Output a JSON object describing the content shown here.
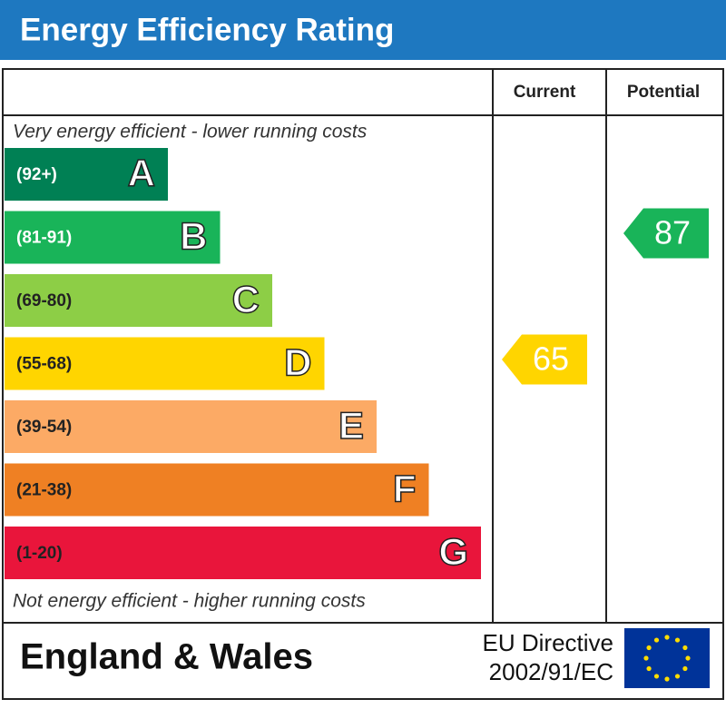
{
  "header": {
    "title": "Energy Efficiency Rating"
  },
  "columns": {
    "current": "Current",
    "potential": "Potential"
  },
  "notes": {
    "top": "Very energy efficient - lower running costs",
    "bottom": "Not energy efficient - higher running costs"
  },
  "bands": [
    {
      "range": "(92+)",
      "letter": "A",
      "color": "#008054"
    },
    {
      "range": "(81-91)",
      "letter": "B",
      "color": "#19b459"
    },
    {
      "range": "(69-80)",
      "letter": "C",
      "color": "#8dce46"
    },
    {
      "range": "(55-68)",
      "letter": "D",
      "color": "#ffd500"
    },
    {
      "range": "(39-54)",
      "letter": "E",
      "color": "#fcaa65"
    },
    {
      "range": "(21-38)",
      "letter": "F",
      "color": "#ef8023"
    },
    {
      "range": "(1-20)",
      "letter": "G",
      "color": "#e9153b"
    }
  ],
  "ratings": {
    "current": 65,
    "potential": 87
  },
  "footer": {
    "region": "England & Wales",
    "directive_line1": "EU Directive",
    "directive_line2": "2002/91/EC"
  }
}
